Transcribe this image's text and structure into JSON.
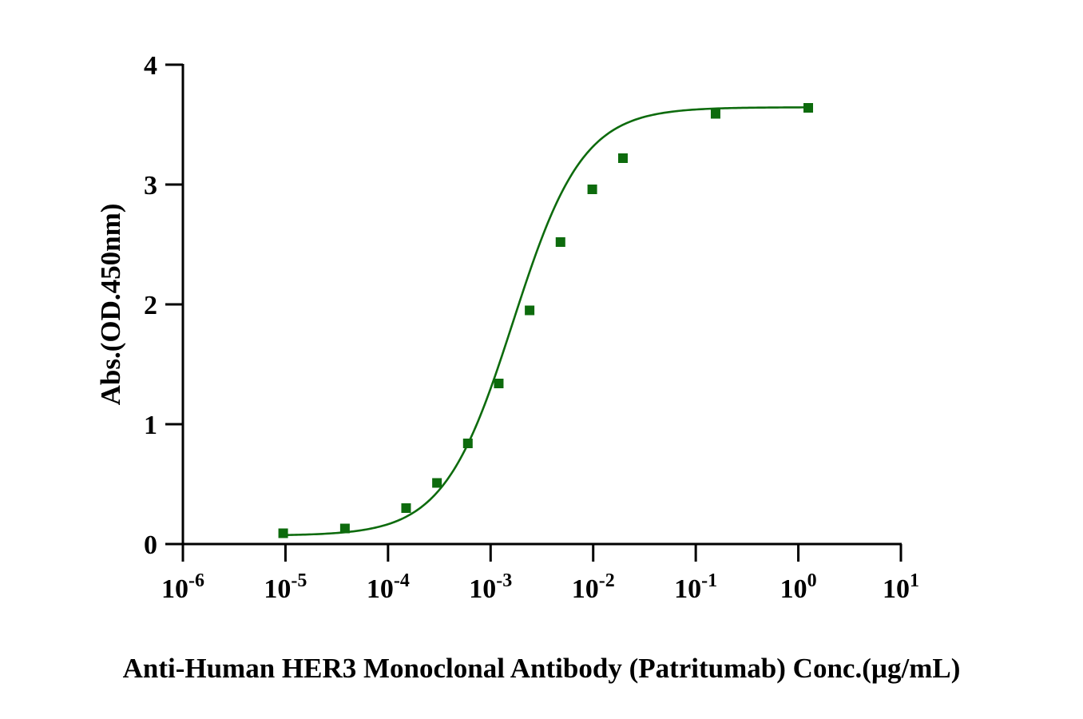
{
  "chart_data": {
    "type": "scatter",
    "xlabel": "Anti-Human HER3 Monoclonal Antibody (Patritumab)  Conc.(µg/mL)",
    "ylabel": "Abs.(OD.450nm)",
    "x_scale": "log",
    "xlim": [
      1e-06,
      10
    ],
    "ylim": [
      0,
      4
    ],
    "x_ticks": [
      {
        "base": "10",
        "exp": "-6"
      },
      {
        "base": "10",
        "exp": "-5"
      },
      {
        "base": "10",
        "exp": "-4"
      },
      {
        "base": "10",
        "exp": "-3"
      },
      {
        "base": "10",
        "exp": "-2"
      },
      {
        "base": "10",
        "exp": "-1"
      },
      {
        "base": "10",
        "exp": "0"
      },
      {
        "base": "10",
        "exp": "1"
      }
    ],
    "y_ticks": [
      "0",
      "1",
      "2",
      "3",
      "4"
    ],
    "grid": false,
    "color": "#0d6b0d",
    "series": [
      {
        "marker": "square",
        "fit": "sigmoidal-4pl",
        "x": [
          9.5e-06,
          3.8e-05,
          0.00015,
          0.0003,
          0.0006,
          0.0012,
          0.0024,
          0.0048,
          0.0098,
          0.0195,
          0.156,
          1.25
        ],
        "y": [
          0.09,
          0.13,
          0.3,
          0.51,
          0.84,
          1.34,
          1.95,
          2.52,
          2.96,
          3.22,
          3.59,
          3.64
        ]
      }
    ]
  }
}
